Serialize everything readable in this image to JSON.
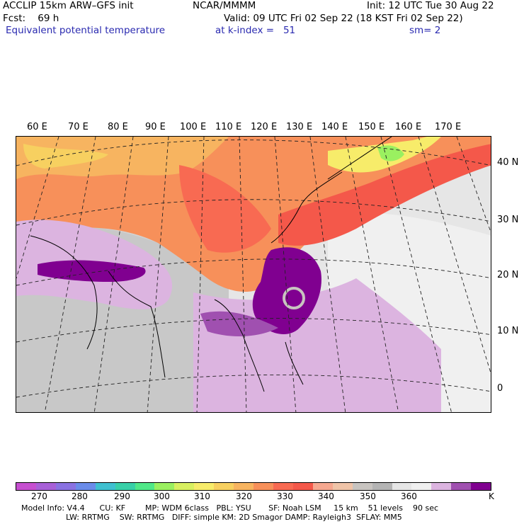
{
  "header": {
    "line1_left": "ACCLIP 15km ARW–GFS init",
    "line1_center": "NCAR/MMMM",
    "line1_right": "Init: 12 UTC Tue 30 Aug 22",
    "line2_left": "Fcst:    69 h",
    "line2_right": "Valid: 09 UTC Fri 02 Sep 22 (18 KST Fri 02 Sep 22)",
    "line3_left": "Equivalent potential temperature",
    "line3_center": "at k-index =   51",
    "line3_right": "sm= 2"
  },
  "map": {
    "lon_labels": [
      "60 E",
      "70 E",
      "80 E",
      "90 E",
      "100 E",
      "110 E",
      "120 E",
      "130 E",
      "140 E",
      "150 E",
      "160 E",
      "170 E"
    ],
    "lat_labels": [
      "40 N",
      "30 N",
      "20 N",
      "10 N",
      "0"
    ]
  },
  "colorbar": {
    "colors": [
      "#c64fd0",
      "#a860d8",
      "#8a72e2",
      "#6a8cea",
      "#3fc0d0",
      "#38d0a8",
      "#50e888",
      "#9af060",
      "#d8f060",
      "#f7ec6a",
      "#f7d060",
      "#f7b460",
      "#f7905a",
      "#f86a52",
      "#f4584a",
      "#f6a890",
      "#f0c4a8",
      "#c8c4c0",
      "#b4b4b4",
      "#e6e6e6",
      "#f0f0f0",
      "#dcb4e0",
      "#a050b0",
      "#800090"
    ],
    "ticks": [
      "270",
      "280",
      "290",
      "300",
      "310",
      "320",
      "330",
      "340",
      "350",
      "360"
    ],
    "unit": "K"
  },
  "footer": {
    "line1": "Model Info: V4.4      CU: KF        MP: WDM 6class   PBL: YSU       SF: Noah LSM     15 km    51 levels    90 sec",
    "line2": "                  LW: RRTMG    SW: RRTMG   DIFF: simple KM: 2D Smagor DAMP: Rayleigh3  SFLAY: MM5"
  }
}
